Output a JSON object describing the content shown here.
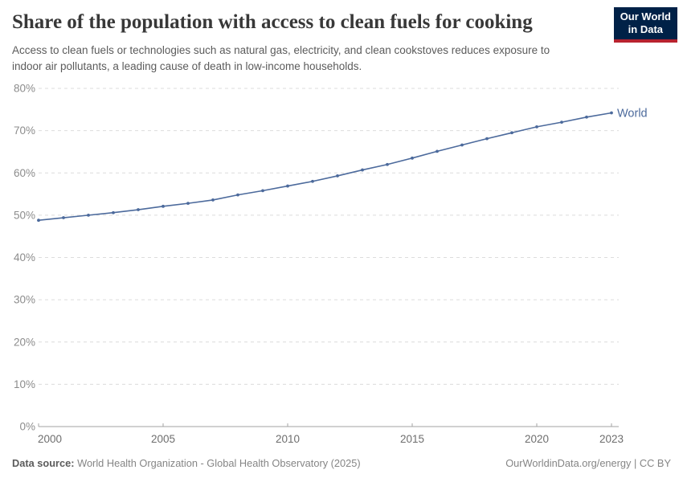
{
  "header": {
    "title": "Share of the population with access to clean fuels for cooking",
    "subtitle_line1": "Access to clean fuels or technologies such as natural gas, electricity, and clean cookstoves reduces exposure to",
    "subtitle_line2": "indoor air pollutants, a leading cause of death in low-income households."
  },
  "logo": {
    "line1": "Our World",
    "line2": "in Data",
    "bg_color": "#002147",
    "accent_color": "#b8232f"
  },
  "chart_data": {
    "type": "line",
    "title": "Share of the population with access to clean fuels for cooking",
    "x": [
      2000,
      2001,
      2002,
      2003,
      2004,
      2005,
      2006,
      2007,
      2008,
      2009,
      2010,
      2011,
      2012,
      2013,
      2014,
      2015,
      2016,
      2017,
      2018,
      2019,
      2020,
      2021,
      2022,
      2023
    ],
    "series": [
      {
        "name": "World",
        "color": "#4c6a9c",
        "values": [
          48.8,
          49.4,
          50.0,
          50.6,
          51.3,
          52.1,
          52.8,
          53.6,
          54.8,
          55.8,
          56.9,
          58.0,
          59.3,
          60.7,
          62.0,
          63.5,
          65.1,
          66.6,
          68.1,
          69.5,
          70.9,
          72.0,
          73.2,
          74.2
        ]
      }
    ],
    "xlabel": "",
    "ylabel": "",
    "ylim": [
      0,
      80
    ],
    "y_ticks": [
      0,
      10,
      20,
      30,
      40,
      50,
      60,
      70,
      80
    ],
    "y_tick_suffix": "%",
    "x_ticks": [
      2000,
      2005,
      2010,
      2015,
      2020,
      2023
    ],
    "grid": "horizontal-dashed",
    "legend_position": "end-of-line",
    "colors": {
      "gridline": "#dcdcdc",
      "axis": "#a3a3a3",
      "y_tick_label": "#8c8c8c",
      "x_tick_label": "#6e6e6e"
    }
  },
  "footer": {
    "source_label": "Data source:",
    "source_text": "World Health Organization - Global Health Observatory (2025)",
    "right_text": "OurWorldinData.org/energy | CC BY"
  }
}
